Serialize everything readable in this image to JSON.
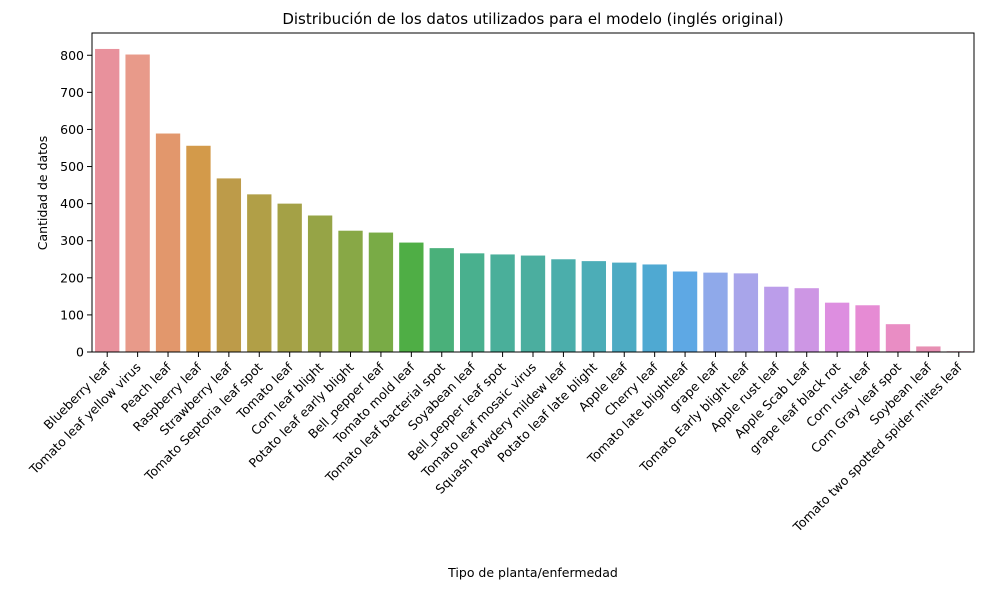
{
  "chart_data": {
    "type": "bar",
    "title": "Distribución de los datos utilizados para el modelo (inglés original)",
    "xlabel": "Tipo de planta/enfermedad",
    "ylabel": "Cantidad de datos",
    "ylim": [
      0,
      860
    ],
    "yticks": [
      0,
      100,
      200,
      300,
      400,
      500,
      600,
      700,
      800
    ],
    "grid": false,
    "categories": [
      "Blueberry leaf",
      "Tomato leaf yellow virus",
      "Peach leaf",
      "Raspberry leaf",
      "Strawberry leaf",
      "Tomato Septoria leaf spot",
      "Tomato leaf",
      "Corn leaf blight",
      "Potato leaf early blight",
      "Bell_pepper leaf",
      "Tomato mold leaf",
      "Tomato leaf bacterial spot",
      "Soyabean leaf",
      "Bell_pepper leaf spot",
      "Tomato leaf mosaic virus",
      "Squash Powdery mildew leaf",
      "Potato leaf late blight",
      "Apple leaf",
      "Cherry leaf",
      "Tomato late blightleaf",
      "grape leaf",
      "Tomato Early blight leaf",
      "Apple rust leaf",
      "Apple Scab Leaf",
      "grape leaf black rot",
      "Corn rust leaf",
      "Corn Gray leaf spot",
      "Soybean leaf",
      "Tomato two spotted spider mites leaf"
    ],
    "values": [
      817,
      802,
      589,
      556,
      468,
      425,
      400,
      368,
      327,
      322,
      295,
      280,
      266,
      263,
      260,
      250,
      245,
      241,
      236,
      217,
      214,
      212,
      176,
      172,
      133,
      126,
      75,
      15,
      2
    ],
    "colors": [
      "#e8919c",
      "#e89a8a",
      "#e2976c",
      "#d39a4a",
      "#bd9b49",
      "#b19f47",
      "#a4a146",
      "#96a446",
      "#88a846",
      "#79ab46",
      "#4fae45",
      "#4ab07a",
      "#49b08e",
      "#4aaf9a",
      "#4bae9f",
      "#4baeab",
      "#4cadb7",
      "#4dabc3",
      "#4fa9d2",
      "#5ea8e4",
      "#8fa9ea",
      "#a8a5ea",
      "#bb9dea",
      "#cd96e4",
      "#dd8ee0",
      "#e68bd4",
      "#e98dc4",
      "#e78fb3",
      "#e891a7"
    ]
  }
}
